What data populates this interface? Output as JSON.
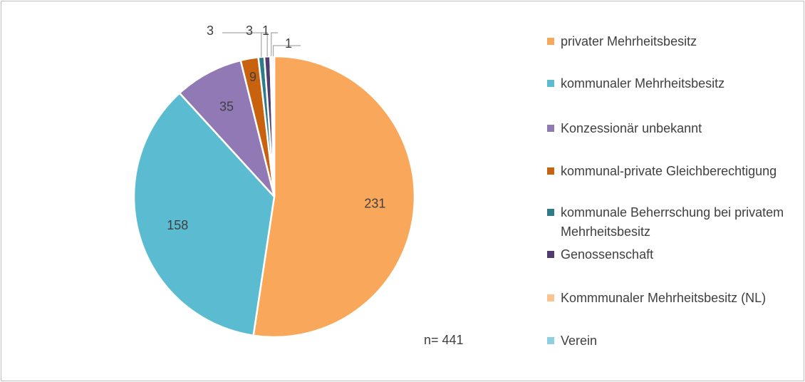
{
  "chart_data": {
    "type": "pie",
    "categories": [
      "privater Mehrheitsbesitz",
      "kommunaler Mehrheitsbesitz",
      "Konzessionär unbekannt",
      "kommunal-private Gleichberechtigung",
      "kommunale Beherrschung bei privatem Mehrheitsbesitz",
      "Genossenschaft",
      "Kommmunaler Mehrheitsbesitz (NL)",
      "Verein"
    ],
    "values": [
      231,
      158,
      35,
      9,
      3,
      3,
      1,
      1
    ],
    "colors": [
      "#f9a85b",
      "#5bbcd1",
      "#9079b5",
      "#c8620f",
      "#2e7c8a",
      "#4e3d6e",
      "#fbc48f",
      "#8dd1e1"
    ],
    "annotation": "n= 441",
    "legend": "right"
  }
}
